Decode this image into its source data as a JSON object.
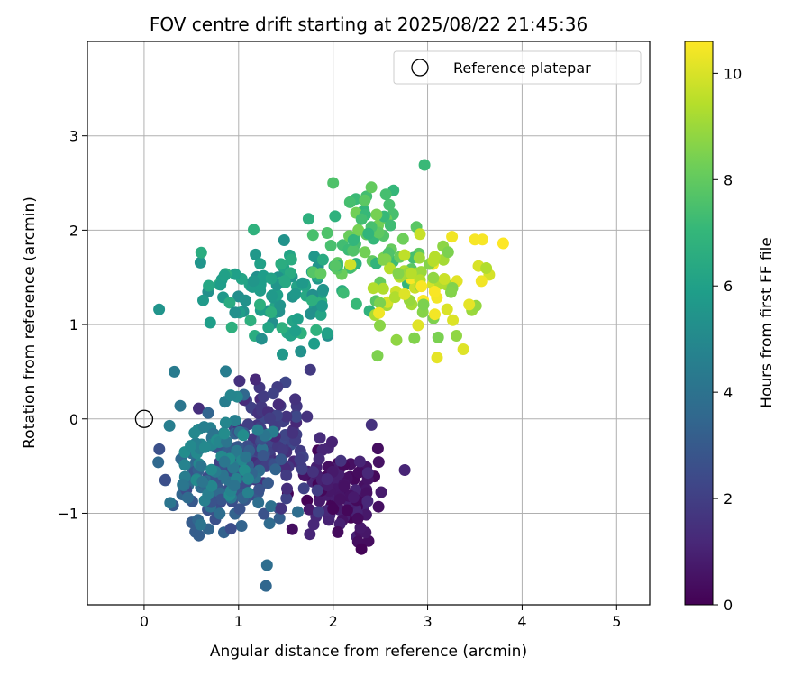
{
  "chart_data": {
    "type": "scatter",
    "title": "FOV centre drift starting at 2025/08/22 21:45:36",
    "xlabel": "Angular distance from reference (arcmin)",
    "ylabel": "Rotation from reference (arcmin)",
    "xlim": [
      -0.6,
      5.35
    ],
    "ylim": [
      -1.97,
      4.0
    ],
    "xticks": [
      0,
      1,
      2,
      3,
      4,
      5
    ],
    "xtick_labels": [
      "0",
      "1",
      "2",
      "3",
      "4",
      "5"
    ],
    "yticks": [
      -1,
      0,
      1,
      2,
      3
    ],
    "ytick_labels": [
      "−1",
      "0",
      "1",
      "2",
      "3"
    ],
    "grid": true,
    "legend": {
      "placement": "top-right",
      "entries": [
        "Reference platepar"
      ]
    },
    "reference_point": {
      "x": 0,
      "y": 0,
      "label": "Reference platepar",
      "marker": "open-circle"
    },
    "colorbar": {
      "label": "Hours from first FF file",
      "range": [
        0,
        10.6
      ],
      "ticks": [
        0,
        2,
        4,
        6,
        8,
        10
      ],
      "tick_labels": [
        "0",
        "2",
        "4",
        "6",
        "8",
        "10"
      ],
      "colormap": "viridis"
    },
    "colors": {
      "viridis": [
        "#440154",
        "#482878",
        "#3e4989",
        "#31688e",
        "#26828e",
        "#1f9e89",
        "#35b779",
        "#6ece58",
        "#b5de2b",
        "#fde725"
      ],
      "grid": "#b0b0b0",
      "reference_marker": "#000000"
    },
    "clusters": [
      {
        "name": "c1",
        "hours_range": [
          0.0,
          1.2
        ],
        "center": [
          2.1,
          -0.75
        ],
        "spread": [
          0.22,
          0.22
        ],
        "count": 110
      },
      {
        "name": "c2",
        "hours_range": [
          1.2,
          2.4
        ],
        "center": [
          1.3,
          -0.2
        ],
        "spread": [
          0.3,
          0.28
        ],
        "count": 120
      },
      {
        "name": "c3",
        "hours_range": [
          2.4,
          4.0
        ],
        "center": [
          0.85,
          -0.65
        ],
        "spread": [
          0.28,
          0.28
        ],
        "count": 120
      },
      {
        "name": "c4",
        "hours_range": [
          4.0,
          5.2
        ],
        "center": [
          0.75,
          -0.4
        ],
        "spread": [
          0.25,
          0.3
        ],
        "count": 70
      },
      {
        "name": "c5",
        "hours_range": [
          5.2,
          6.8
        ],
        "center": [
          1.45,
          1.3
        ],
        "spread": [
          0.35,
          0.28
        ],
        "count": 100
      },
      {
        "name": "c6",
        "hours_range": [
          6.8,
          8.4
        ],
        "center": [
          2.35,
          1.85
        ],
        "spread": [
          0.3,
          0.3
        ],
        "count": 70
      },
      {
        "name": "c7",
        "hours_range": [
          8.4,
          10.6
        ],
        "center": [
          2.95,
          1.35
        ],
        "spread": [
          0.3,
          0.3
        ],
        "count": 70
      }
    ],
    "notable_points": [
      {
        "x": 1.29,
        "y": -1.77,
        "hours": 3.5
      },
      {
        "x": 1.3,
        "y": -1.55,
        "hours": 3.8
      },
      {
        "x": 0.32,
        "y": 0.5,
        "hours": 4.4
      },
      {
        "x": 0.15,
        "y": -0.46,
        "hours": 3.6
      },
      {
        "x": 0.7,
        "y": 1.02,
        "hours": 5.9
      },
      {
        "x": 0.85,
        "y": 1.52,
        "hours": 6.0
      },
      {
        "x": 1.82,
        "y": 0.94,
        "hours": 6.8
      },
      {
        "x": 1.74,
        "y": 2.12,
        "hours": 6.7
      },
      {
        "x": 2.0,
        "y": 2.5,
        "hours": 7.6
      },
      {
        "x": 2.47,
        "y": 0.67,
        "hours": 8.5
      },
      {
        "x": 3.1,
        "y": 0.65,
        "hours": 10.2
      },
      {
        "x": 3.5,
        "y": 1.9,
        "hours": 10.5
      },
      {
        "x": 3.58,
        "y": 1.9,
        "hours": 10.5
      },
      {
        "x": 3.8,
        "y": 1.86,
        "hours": 10.6
      },
      {
        "x": 3.57,
        "y": 1.46,
        "hours": 10.4
      },
      {
        "x": 2.05,
        "y": -1.2,
        "hours": 0.3
      },
      {
        "x": 2.3,
        "y": -1.38,
        "hours": 0.1
      },
      {
        "x": 1.45,
        "y": -0.95,
        "hours": 1.6
      }
    ]
  }
}
